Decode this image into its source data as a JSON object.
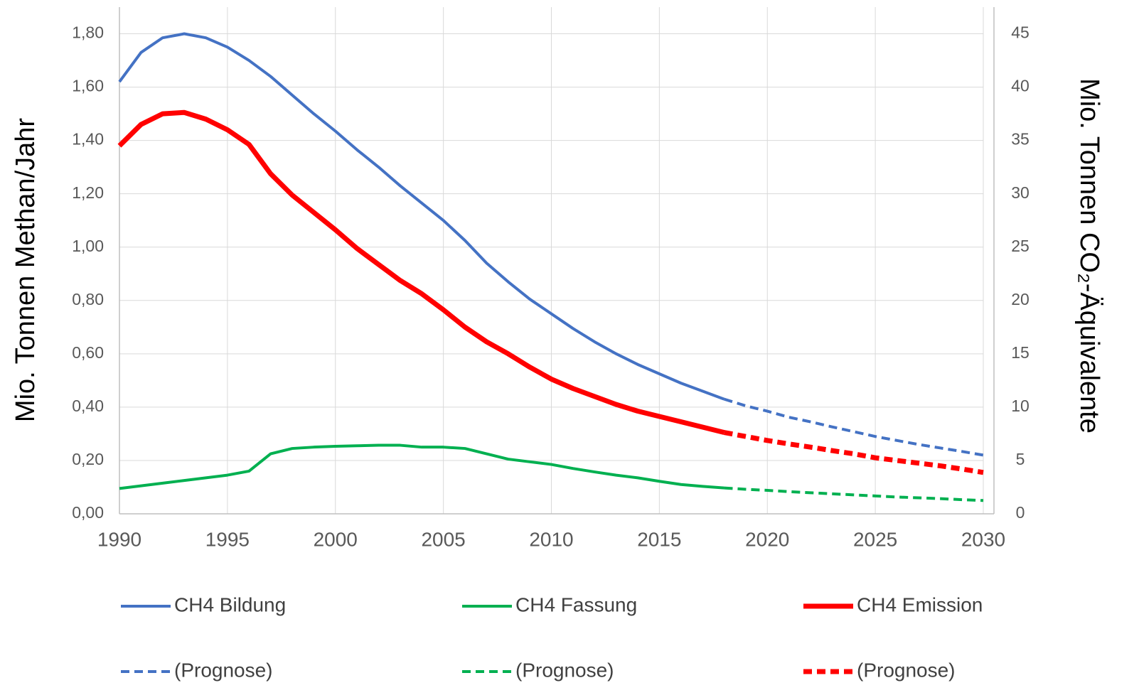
{
  "chart_data": {
    "type": "line",
    "ylabel": "Mio. Tonnen Methan/Jahr",
    "y2label": "Mio. Tonnen CO₂-Äquivalente",
    "x": [
      1990,
      1991,
      1992,
      1993,
      1994,
      1995,
      1996,
      1997,
      1998,
      1999,
      2000,
      2001,
      2002,
      2003,
      2004,
      2005,
      2006,
      2007,
      2008,
      2009,
      2010,
      2011,
      2012,
      2013,
      2014,
      2015,
      2016,
      2017,
      2018,
      2019,
      2020,
      2021,
      2022,
      2023,
      2024,
      2025,
      2026,
      2027,
      2028,
      2029,
      2030
    ],
    "xlim": [
      1990,
      2030
    ],
    "xticks": [
      1990,
      1995,
      2000,
      2005,
      2010,
      2015,
      2020,
      2025,
      2030
    ],
    "ylim": [
      0,
      1.9
    ],
    "yticks": [
      {
        "value": 0,
        "label": "0,00"
      },
      {
        "value": 0.2,
        "label": "0,20"
      },
      {
        "value": 0.4,
        "label": "0,40"
      },
      {
        "value": 0.6,
        "label": "0,60"
      },
      {
        "value": 0.8,
        "label": "0,80"
      },
      {
        "value": 1.0,
        "label": "1,00"
      },
      {
        "value": 1.2,
        "label": "1,20"
      },
      {
        "value": 1.4,
        "label": "1,40"
      },
      {
        "value": 1.6,
        "label": "1,60"
      },
      {
        "value": 1.8,
        "label": "1,80"
      }
    ],
    "y2lim": [
      0,
      47.5
    ],
    "y2ticks": [
      0,
      5,
      10,
      15,
      20,
      25,
      30,
      35,
      40,
      45
    ],
    "grid": true,
    "legend": "bottom",
    "series": [
      {
        "name": "CH4 Bildung",
        "color": "#4472c4",
        "dashed": false,
        "line_width": 4,
        "values": [
          1.62,
          1.73,
          1.785,
          1.8,
          1.785,
          1.75,
          1.7,
          1.64,
          1.57,
          1.5,
          1.435,
          1.365,
          1.3,
          1.23,
          1.165,
          1.1,
          1.025,
          0.94,
          0.87,
          0.805,
          0.75,
          0.695,
          0.645,
          0.6,
          0.56,
          0.525,
          0.49,
          0.46,
          0.43,
          null,
          null,
          null,
          null,
          null,
          null,
          null,
          null,
          null,
          null,
          null,
          null
        ]
      },
      {
        "name": "CH4 Fassung",
        "color": "#00b050",
        "dashed": false,
        "line_width": 4,
        "values": [
          0.095,
          0.105,
          0.115,
          0.125,
          0.135,
          0.145,
          0.16,
          0.225,
          0.245,
          0.25,
          0.253,
          0.255,
          0.257,
          0.257,
          0.25,
          0.25,
          0.245,
          0.225,
          0.205,
          0.195,
          0.185,
          0.17,
          0.157,
          0.145,
          0.135,
          0.122,
          0.11,
          0.103,
          0.097,
          null,
          null,
          null,
          null,
          null,
          null,
          null,
          null,
          null,
          null,
          null,
          null
        ]
      },
      {
        "name": "CH4 Emission",
        "color": "#ff0000",
        "dashed": false,
        "line_width": 7,
        "values": [
          1.38,
          1.46,
          1.5,
          1.505,
          1.48,
          1.44,
          1.385,
          1.275,
          1.195,
          1.13,
          1.065,
          0.995,
          0.935,
          0.875,
          0.825,
          0.765,
          0.7,
          0.645,
          0.6,
          0.55,
          0.505,
          0.47,
          0.44,
          0.41,
          0.385,
          0.365,
          0.345,
          0.325,
          0.305,
          null,
          null,
          null,
          null,
          null,
          null,
          null,
          null,
          null,
          null,
          null,
          null
        ]
      },
      {
        "name": "(Prognose)",
        "color": "#4472c4",
        "dashed": true,
        "line_width": 4,
        "values": [
          null,
          null,
          null,
          null,
          null,
          null,
          null,
          null,
          null,
          null,
          null,
          null,
          null,
          null,
          null,
          null,
          null,
          null,
          null,
          null,
          null,
          null,
          null,
          null,
          null,
          null,
          null,
          null,
          0.43,
          0.405,
          0.385,
          0.362,
          0.345,
          0.326,
          0.308,
          0.29,
          0.275,
          0.26,
          0.247,
          0.234,
          0.22
        ]
      },
      {
        "name": "(Prognose)",
        "color": "#00b050",
        "dashed": true,
        "line_width": 4,
        "values": [
          null,
          null,
          null,
          null,
          null,
          null,
          null,
          null,
          null,
          null,
          null,
          null,
          null,
          null,
          null,
          null,
          null,
          null,
          null,
          null,
          null,
          null,
          null,
          null,
          null,
          null,
          null,
          null,
          0.097,
          0.092,
          0.088,
          0.083,
          0.079,
          0.075,
          0.071,
          0.067,
          0.063,
          0.06,
          0.057,
          0.053,
          0.05
        ]
      },
      {
        "name": "(Prognose)",
        "color": "#ff0000",
        "dashed": true,
        "line_width": 7,
        "values": [
          null,
          null,
          null,
          null,
          null,
          null,
          null,
          null,
          null,
          null,
          null,
          null,
          null,
          null,
          null,
          null,
          null,
          null,
          null,
          null,
          null,
          null,
          null,
          null,
          null,
          null,
          null,
          null,
          0.305,
          0.29,
          0.275,
          0.262,
          0.25,
          0.237,
          0.225,
          0.21,
          0.2,
          0.19,
          0.18,
          0.168,
          0.155
        ]
      }
    ]
  }
}
